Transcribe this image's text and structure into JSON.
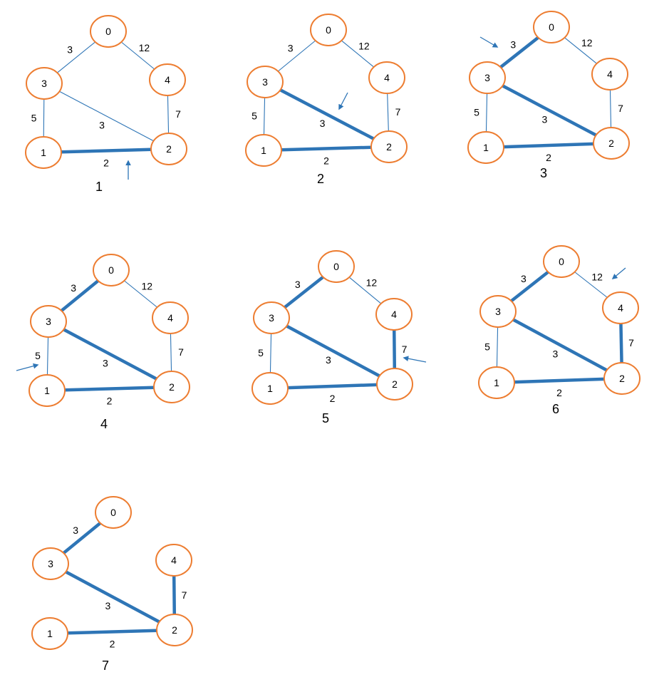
{
  "colors": {
    "node_stroke": "#ED7D31",
    "node_fill": "#ffffff",
    "edge": "#2E75B6",
    "arrow": "#2E75B6",
    "text": "#000000"
  },
  "panels": [
    {
      "caption": "1",
      "nodes": [
        "0",
        "1",
        "2",
        "3",
        "4"
      ],
      "edges": [
        {
          "from": "3",
          "to": "0",
          "weight": "3",
          "selected": false
        },
        {
          "from": "0",
          "to": "4",
          "weight": "12",
          "selected": false
        },
        {
          "from": "3",
          "to": "1",
          "weight": "5",
          "selected": false
        },
        {
          "from": "3",
          "to": "2",
          "weight": "3",
          "selected": false
        },
        {
          "from": "4",
          "to": "2",
          "weight": "7",
          "selected": false
        },
        {
          "from": "1",
          "to": "2",
          "weight": "2",
          "selected": true
        }
      ],
      "pointer_on": "1-2"
    },
    {
      "caption": "2",
      "nodes": [
        "0",
        "1",
        "2",
        "3",
        "4"
      ],
      "edges": [
        {
          "from": "3",
          "to": "0",
          "weight": "3",
          "selected": false
        },
        {
          "from": "0",
          "to": "4",
          "weight": "12",
          "selected": false
        },
        {
          "from": "3",
          "to": "1",
          "weight": "5",
          "selected": false
        },
        {
          "from": "3",
          "to": "2",
          "weight": "3",
          "selected": true
        },
        {
          "from": "4",
          "to": "2",
          "weight": "7",
          "selected": false
        },
        {
          "from": "1",
          "to": "2",
          "weight": "2",
          "selected": true
        }
      ],
      "pointer_on": "3-2"
    },
    {
      "caption": "3",
      "nodes": [
        "0",
        "1",
        "2",
        "3",
        "4"
      ],
      "edges": [
        {
          "from": "3",
          "to": "0",
          "weight": "3",
          "selected": true
        },
        {
          "from": "0",
          "to": "4",
          "weight": "12",
          "selected": false
        },
        {
          "from": "3",
          "to": "1",
          "weight": "5",
          "selected": false
        },
        {
          "from": "3",
          "to": "2",
          "weight": "3",
          "selected": true
        },
        {
          "from": "4",
          "to": "2",
          "weight": "7",
          "selected": false
        },
        {
          "from": "1",
          "to": "2",
          "weight": "2",
          "selected": true
        }
      ],
      "pointer_on": "3-0"
    },
    {
      "caption": "4",
      "nodes": [
        "0",
        "1",
        "2",
        "3",
        "4"
      ],
      "edges": [
        {
          "from": "3",
          "to": "0",
          "weight": "3",
          "selected": true
        },
        {
          "from": "0",
          "to": "4",
          "weight": "12",
          "selected": false
        },
        {
          "from": "3",
          "to": "1",
          "weight": "5",
          "selected": false
        },
        {
          "from": "3",
          "to": "2",
          "weight": "3",
          "selected": true
        },
        {
          "from": "4",
          "to": "2",
          "weight": "7",
          "selected": false
        },
        {
          "from": "1",
          "to": "2",
          "weight": "2",
          "selected": true
        }
      ],
      "pointer_on": "3-1"
    },
    {
      "caption": "5",
      "nodes": [
        "0",
        "1",
        "2",
        "3",
        "4"
      ],
      "edges": [
        {
          "from": "3",
          "to": "0",
          "weight": "3",
          "selected": true
        },
        {
          "from": "0",
          "to": "4",
          "weight": "12",
          "selected": false
        },
        {
          "from": "3",
          "to": "1",
          "weight": "5",
          "selected": false
        },
        {
          "from": "3",
          "to": "2",
          "weight": "3",
          "selected": true
        },
        {
          "from": "4",
          "to": "2",
          "weight": "7",
          "selected": true
        },
        {
          "from": "1",
          "to": "2",
          "weight": "2",
          "selected": true
        }
      ],
      "pointer_on": "4-2"
    },
    {
      "caption": "6",
      "nodes": [
        "0",
        "1",
        "2",
        "3",
        "4"
      ],
      "edges": [
        {
          "from": "3",
          "to": "0",
          "weight": "3",
          "selected": true
        },
        {
          "from": "0",
          "to": "4",
          "weight": "12",
          "selected": false
        },
        {
          "from": "3",
          "to": "1",
          "weight": "5",
          "selected": false
        },
        {
          "from": "3",
          "to": "2",
          "weight": "3",
          "selected": true
        },
        {
          "from": "4",
          "to": "2",
          "weight": "7",
          "selected": true
        },
        {
          "from": "1",
          "to": "2",
          "weight": "2",
          "selected": true
        }
      ],
      "pointer_on": "0-4"
    },
    {
      "caption": "7",
      "nodes": [
        "0",
        "1",
        "2",
        "3",
        "4"
      ],
      "edges": [
        {
          "from": "3",
          "to": "0",
          "weight": "3",
          "selected": true
        },
        {
          "from": "3",
          "to": "2",
          "weight": "3",
          "selected": true
        },
        {
          "from": "4",
          "to": "2",
          "weight": "7",
          "selected": true
        },
        {
          "from": "1",
          "to": "2",
          "weight": "2",
          "selected": true
        }
      ],
      "pointer_on": ""
    }
  ]
}
